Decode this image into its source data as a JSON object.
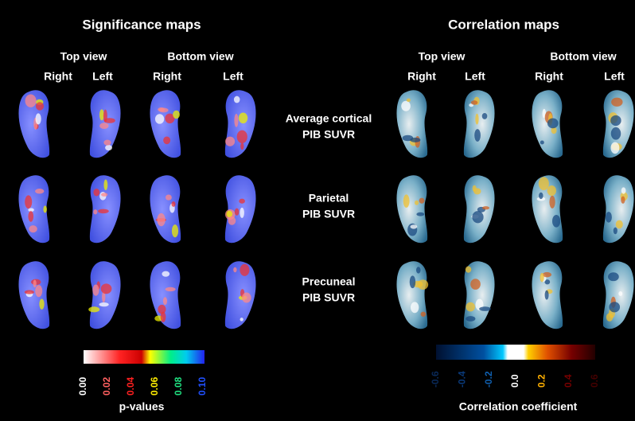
{
  "significance": {
    "title": "Significance maps",
    "views": [
      "Top view",
      "Bottom view"
    ],
    "sides": [
      "Right",
      "Left",
      "Right",
      "Left"
    ],
    "colorbar": {
      "ticks": [
        "0.00",
        "0.02",
        "0.04",
        "0.06",
        "0.08",
        "0.10"
      ],
      "label": "p-values"
    }
  },
  "correlation": {
    "title": "Correlation maps",
    "views": [
      "Top view",
      "Bottom view"
    ],
    "sides": [
      "Right",
      "Left",
      "Right",
      "Left"
    ],
    "colorbar": {
      "ticks": [
        "-0.6",
        "-0.4",
        "-0.2",
        "0.0",
        "0.2",
        "0.4",
        "0.6"
      ],
      "label": "Correlation coefficient"
    }
  },
  "rows": [
    [
      "Average cortical",
      "PIB SUVR"
    ],
    [
      "Parietal",
      "PIB SUVR"
    ],
    [
      "Precuneal",
      "PIB SUVR"
    ]
  ]
}
